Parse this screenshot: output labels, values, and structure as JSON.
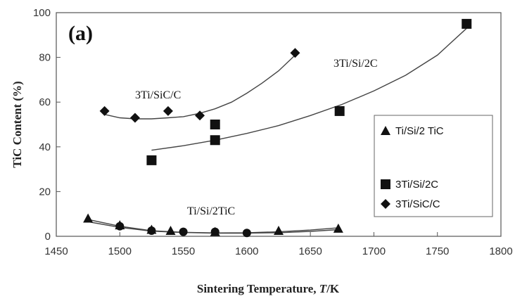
{
  "chart_data": {
    "type": "scatter",
    "panel_label": "(a)",
    "xlabel_main": "Sintering Temperature, ",
    "xlabel_var": "T",
    "xlabel_unit": "/K",
    "ylabel": "TiC Content (%)",
    "xlim": [
      1450,
      1800
    ],
    "ylim": [
      0,
      100
    ],
    "xticks": [
      "1450",
      "1500",
      "1550",
      "1600",
      "1650",
      "1700",
      "1750",
      "1800"
    ],
    "yticks": [
      "0",
      "20",
      "40",
      "60",
      "80",
      "100"
    ],
    "grid": false,
    "legend_position": "right",
    "series": [
      {
        "name": "Ti/Si/2 TiC",
        "annotation": "Ti/Si/2TiC",
        "marker": "triangle",
        "x": [
          1475,
          1500,
          1525,
          1540,
          1575,
          1625,
          1672
        ],
        "y": [
          8,
          5,
          3,
          2.5,
          2,
          2.5,
          3.5
        ]
      },
      {
        "name": "3Ti/Si/2C",
        "annotation": "3Ti/Si/2C",
        "marker": "square",
        "x": [
          1525,
          1575,
          1575,
          1673,
          1773
        ],
        "y": [
          34,
          43,
          50,
          56,
          95
        ]
      },
      {
        "name": "3Ti/SiC/C",
        "annotation": "3Ti/SiC/C",
        "marker": "diamond",
        "x": [
          1488,
          1512,
          1538,
          1563,
          1638
        ],
        "y": [
          56,
          53,
          56,
          54,
          82
        ]
      },
      {
        "name": "",
        "marker": "circle",
        "x": [
          1500,
          1525,
          1550,
          1575,
          1600
        ],
        "y": [
          4.5,
          2.5,
          2,
          2,
          1.5
        ]
      }
    ],
    "curves": [
      {
        "x": [
          1475,
          1500,
          1525,
          1550,
          1575,
          1600,
          1625,
          1650,
          1672
        ],
        "y": [
          7.5,
          4.5,
          2.5,
          1.8,
          1.5,
          1.6,
          2,
          2.8,
          3.8
        ]
      },
      {
        "x": [
          1475,
          1500,
          1525,
          1550,
          1575,
          1600,
          1625,
          1650,
          1672
        ],
        "y": [
          6.5,
          4,
          2.3,
          1.7,
          1.4,
          1.4,
          1.6,
          2.2,
          3
        ]
      },
      {
        "x": [
          1525,
          1550,
          1575,
          1600,
          1625,
          1650,
          1675,
          1700,
          1725,
          1750,
          1773
        ],
        "y": [
          38.5,
          40.5,
          43,
          46,
          49.5,
          54,
          59,
          65,
          72,
          81,
          93
        ]
      },
      {
        "x": [
          1488,
          1500,
          1512,
          1525,
          1538,
          1550,
          1563,
          1575,
          1588,
          1600,
          1612,
          1625,
          1638
        ],
        "y": [
          54.5,
          53,
          52.5,
          52.5,
          53,
          53.5,
          55,
          57,
          60,
          64,
          68.5,
          74,
          81
        ]
      }
    ]
  }
}
